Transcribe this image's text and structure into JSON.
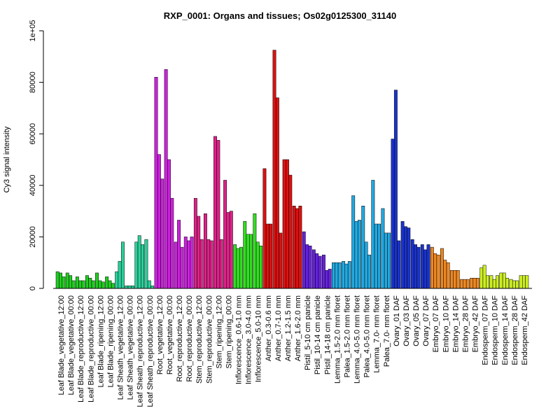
{
  "chart_data": {
    "type": "bar",
    "title": "RXP_0001: Organs and tissues; Os02g0125300_31140",
    "xlabel": "",
    "ylabel": "Cy3 signal intensity",
    "ylim": [
      0,
      100000
    ],
    "yticks": [
      0,
      20000,
      40000,
      60000,
      80000,
      100000
    ],
    "ytick_labels": [
      "0",
      "20000",
      "40000",
      "60000",
      "80000",
      "1e+05"
    ],
    "grid": false,
    "legend": "none",
    "categories": [
      "Leaf Blade_vegetative_12:00",
      "Leaf Blade_vegetative_00:00",
      "Leaf Blade_reproductive_12:00",
      "Leaf Blade_reproductive_00:00",
      "Leaf Blade_ripening_12:00",
      "Leaf Blade_ripening_00:00",
      "Leaf Sheath_vegetative_12:00",
      "Leaf Sheath_vegetative_00:00",
      "Leaf Sheath_reproductive_12:00",
      "Leaf Sheath_reproductive_00:00",
      "Root_vegetative_12:00",
      "Root_vegetative_00:00",
      "Root_reproductive_12:00",
      "Root_reproductive_00:00",
      "Stem_reproductive_12:00",
      "Stem_reproductive_00:00",
      "Stem_ripening_12:00",
      "Stem_ripening_00:00",
      "Inflorescence_0.6-1.0 mm",
      "Inflorescence_3.0-4.0 mm",
      "Inflorescence_5.0-10 mm",
      "Anther_0.3-0.6 mm",
      "Anther_0.7-1.0 mm",
      "Anther_1.2-1.5 mm",
      "Anther_1.6-2.0 mm",
      "Pistil_5-10 cm panicle",
      "Pistil_10-14 cm panicle",
      "Pistil_14-18 cm panicle",
      "Lemma_1.5-2.0 mm floret",
      "Palea_1.5-2.0 mm floret",
      "Lemma_4.0-5.0 mm floret",
      "Palea_4.0-5.0 mm floret",
      "Lemma_7.0- mm floret",
      "Palea_7.0- mm floret",
      "Ovary_01 DAF",
      "Ovary_03 DAF",
      "Ovary_05 DAF",
      "Ovary_07 DAF",
      "Embryo_07 DAF",
      "Embryo_10 DAF",
      "Embryo_14 DAF",
      "Embryo_28 DAF",
      "Embryo_42 DAF",
      "Endosperm_07 DAF",
      "Endosperm_10 DAF",
      "Endosperm_14 DAF",
      "Endosperm_28 DAF",
      "Endosperm_42 DAF"
    ],
    "group_colors": [
      "#22cc22",
      "#22cc22",
      "#22cc22",
      "#22cc22",
      "#22cc22",
      "#22cc22",
      "#2ccf9a",
      "#2ccf9a",
      "#2ccf9a",
      "#2ccf9a",
      "#cc22dd",
      "#cc22dd",
      "#cc22dd",
      "#cc22dd",
      "#dd2288",
      "#dd2288",
      "#dd2288",
      "#dd2288",
      "#33dd22",
      "#33dd22",
      "#33dd22",
      "#dd1111",
      "#dd1111",
      "#dd1111",
      "#dd1111",
      "#6622dd",
      "#6622dd",
      "#6622dd",
      "#22a8e0",
      "#22a8e0",
      "#22a8e0",
      "#22a8e0",
      "#22a8e0",
      "#22a8e0",
      "#1a33cc",
      "#1a33cc",
      "#1a33cc",
      "#1a33cc",
      "#ee8822",
      "#ee8822",
      "#ee8822",
      "#ee8822",
      "#ee8822",
      "#ccee22",
      "#ccee22",
      "#ccee22",
      "#ccee22",
      "#ccee22"
    ],
    "series": [
      {
        "values": [
          6500,
          6000,
          4500,
          5000,
          6000,
          4500,
          6500,
          1000,
          18000,
          19000,
          82000,
          85000,
          18000,
          20000,
          35000,
          29000,
          59000,
          42000,
          17000,
          26000,
          29000,
          46500,
          92500,
          50000,
          32000,
          22000,
          15000,
          13000,
          10000,
          10500,
          36000,
          32000,
          42000,
          31000,
          58000,
          26000,
          19000,
          17000,
          16000,
          15500,
          7000,
          3500,
          4000,
          8000,
          5000,
          6000,
          3500,
          5000
        ]
      },
      {
        "values": [
          6000,
          5000,
          3000,
          4000,
          3000,
          3000,
          10500,
          1000,
          20500,
          3000,
          52000,
          50000,
          26500,
          18500,
          28000,
          19000,
          57500,
          29500,
          15500,
          21000,
          18000,
          25000,
          74000,
          50000,
          31000,
          17000,
          13500,
          7000,
          10000,
          9500,
          26000,
          18000,
          25000,
          21500,
          77000,
          24000,
          17000,
          15000,
          13500,
          11000,
          7000,
          3500,
          4000,
          9000,
          3500,
          6000,
          3000,
          5000
        ]
      },
      {
        "values": [
          4500,
          3000,
          3000,
          3000,
          2500,
          2000,
          18000,
          1000,
          17000,
          1000,
          42500,
          35000,
          16000,
          20000,
          19000,
          18500,
          19000,
          30000,
          16000,
          21000,
          16500,
          25000,
          21500,
          44000,
          32000,
          16500,
          12500,
          7500,
          10000,
          10500,
          26500,
          13000,
          25000,
          21500,
          18500,
          23500,
          16000,
          17000,
          13000,
          10000,
          7000,
          3500,
          4000,
          5000,
          5000,
          4000,
          3000,
          5000
        ]
      }
    ]
  }
}
